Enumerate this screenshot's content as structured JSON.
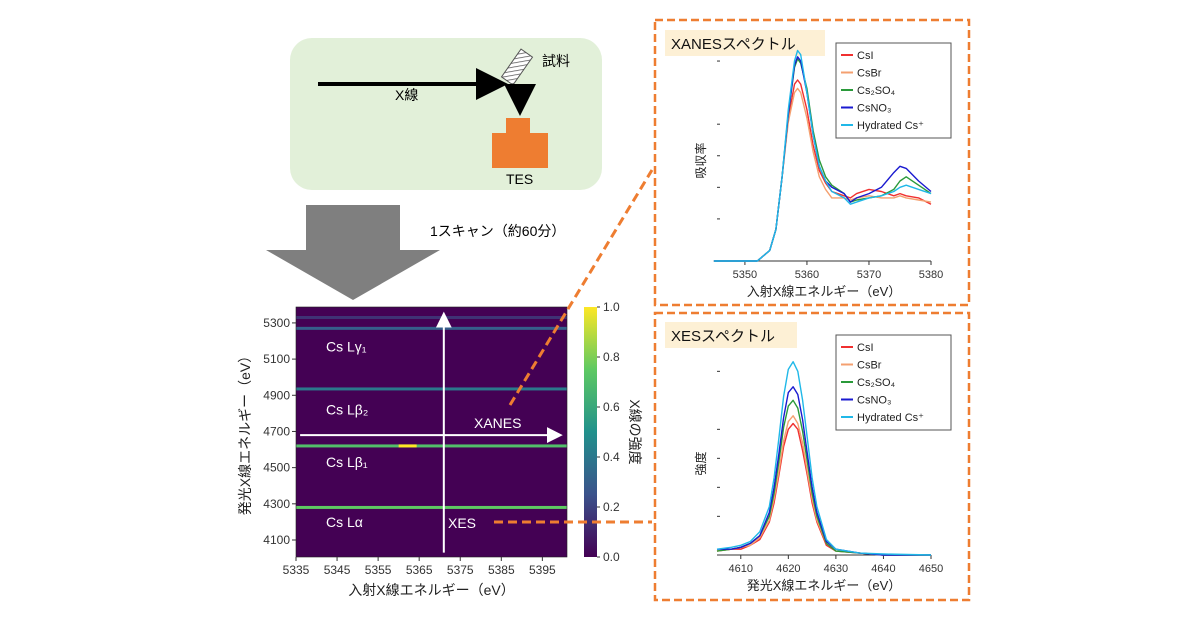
{
  "setup": {
    "xray_label": "X線",
    "sample_label": "試料",
    "detector_label": "TES",
    "scan_label": "1スキャン（約60分）"
  },
  "colors": {
    "accent": "#ee7d31",
    "setup_bg": "#e2f0d9",
    "tes": "#ee7d31",
    "arrow_gray": "#7f7f7f",
    "heat_bg": "#440154",
    "title_bg": "#fdf0d5"
  },
  "chart_data": [
    {
      "type": "heatmap",
      "xlabel": "入射X線エネルギー（eV）",
      "ylabel": "発光X線エネルギー（eV）",
      "colorbar_label": "X線の強度",
      "xlim": [
        5335,
        5401
      ],
      "ylim": [
        4006,
        5388
      ],
      "xticks": [
        "5335",
        "5345",
        "5355",
        "5365",
        "5375",
        "5385",
        "5395"
      ],
      "yticks": [
        "4100",
        "4300",
        "4500",
        "4700",
        "4900",
        "5100",
        "5300"
      ],
      "cticks": [
        "0.0",
        "0.2",
        "0.4",
        "0.6",
        "0.8",
        "1.0"
      ],
      "emission_lines": [
        {
          "label": "Cs Lα",
          "energy": 4280,
          "intensity": 0.75,
          "label_energy": 4200
        },
        {
          "label": "Cs Lβ₁",
          "energy": 4620,
          "intensity": 0.7,
          "label_energy": 4530
        },
        {
          "label": "Cs Lβ₂",
          "energy": 4935,
          "intensity": 0.4,
          "label_energy": 4820
        },
        {
          "label": "Cs Lγ₁",
          "energy": 5270,
          "intensity": 0.3,
          "label_energy": 5170
        },
        {
          "label": "",
          "energy": 5330,
          "intensity": 0.15,
          "label_energy": 5330
        }
      ],
      "annotations": {
        "xanes": "XANES",
        "xes": "XES"
      }
    },
    {
      "type": "line",
      "title": "XANESスペクトル",
      "xlabel": "入射X線エネルギー（eV）",
      "ylabel": "吸収率",
      "xlim": [
        5345.5,
        5380
      ],
      "ylim": [
        0,
        1.05
      ],
      "xticks": [
        "5350",
        "5360",
        "5370",
        "5380"
      ],
      "legend": "top-right",
      "x": [
        5345,
        5350,
        5352,
        5354,
        5355,
        5356,
        5357,
        5358,
        5358.5,
        5359,
        5360,
        5361,
        5362,
        5363,
        5364,
        5366,
        5367,
        5368,
        5370,
        5372,
        5374,
        5375,
        5376,
        5378,
        5380
      ],
      "series": [
        {
          "name": "CsI",
          "color": "#f03030",
          "values": [
            0,
            0,
            0,
            0.05,
            0.15,
            0.4,
            0.68,
            0.84,
            0.86,
            0.84,
            0.72,
            0.55,
            0.43,
            0.37,
            0.33,
            0.31,
            0.3,
            0.32,
            0.34,
            0.33,
            0.31,
            0.32,
            0.31,
            0.3,
            0.27
          ]
        },
        {
          "name": "CsBr",
          "color": "#f4a070",
          "values": [
            0,
            0,
            0,
            0.05,
            0.15,
            0.4,
            0.66,
            0.8,
            0.82,
            0.8,
            0.68,
            0.52,
            0.4,
            0.34,
            0.3,
            0.3,
            0.29,
            0.3,
            0.31,
            0.3,
            0.3,
            0.31,
            0.3,
            0.29,
            0.28
          ]
        },
        {
          "name": "Cs₂SO₄",
          "color": "#2a9a3a",
          "values": [
            0,
            0,
            0,
            0.05,
            0.15,
            0.4,
            0.7,
            0.92,
            0.96,
            0.94,
            0.82,
            0.62,
            0.48,
            0.4,
            0.36,
            0.32,
            0.28,
            0.29,
            0.3,
            0.31,
            0.34,
            0.38,
            0.4,
            0.36,
            0.32
          ]
        },
        {
          "name": "CsNO₃",
          "color": "#1a1ad0",
          "values": [
            0,
            0,
            0,
            0.05,
            0.15,
            0.4,
            0.7,
            0.93,
            0.97,
            0.95,
            0.8,
            0.6,
            0.45,
            0.38,
            0.35,
            0.32,
            0.28,
            0.3,
            0.32,
            0.35,
            0.42,
            0.45,
            0.44,
            0.38,
            0.33
          ]
        },
        {
          "name": "Hydrated Cs⁺",
          "color": "#20b8e8",
          "values": [
            0,
            0,
            0,
            0.05,
            0.15,
            0.4,
            0.72,
            0.95,
            1.0,
            0.98,
            0.8,
            0.6,
            0.45,
            0.38,
            0.33,
            0.3,
            0.27,
            0.28,
            0.3,
            0.31,
            0.33,
            0.35,
            0.36,
            0.34,
            0.32
          ]
        }
      ]
    },
    {
      "type": "line",
      "title": "XESスペクトル",
      "xlabel": "発光X線エネルギー（eV）",
      "ylabel": "強度",
      "xlim": [
        4605,
        4650
      ],
      "ylim": [
        0,
        1.05
      ],
      "xticks": [
        "4610",
        "4620",
        "4630",
        "4640",
        "4650"
      ],
      "legend": "top-right",
      "x": [
        4605,
        4608,
        4610,
        4612,
        4614,
        4616,
        4617,
        4618,
        4619,
        4620,
        4621,
        4622,
        4623,
        4624,
        4625,
        4626,
        4628,
        4630,
        4635,
        4640,
        4650
      ],
      "series": [
        {
          "name": "CsI",
          "color": "#f03030",
          "values": [
            0.02,
            0.03,
            0.03,
            0.05,
            0.08,
            0.17,
            0.27,
            0.41,
            0.56,
            0.65,
            0.68,
            0.65,
            0.54,
            0.41,
            0.27,
            0.17,
            0.05,
            0.02,
            0.01,
            0,
            0
          ]
        },
        {
          "name": "CsBr",
          "color": "#f4a070",
          "values": [
            0.02,
            0.03,
            0.04,
            0.05,
            0.09,
            0.18,
            0.29,
            0.43,
            0.59,
            0.69,
            0.72,
            0.68,
            0.58,
            0.43,
            0.29,
            0.18,
            0.06,
            0.02,
            0.01,
            0,
            0
          ]
        },
        {
          "name": "Cs₂SO₄",
          "color": "#2a9a3a",
          "values": [
            0.02,
            0.03,
            0.04,
            0.06,
            0.1,
            0.2,
            0.32,
            0.48,
            0.66,
            0.77,
            0.8,
            0.76,
            0.64,
            0.48,
            0.32,
            0.2,
            0.06,
            0.02,
            0.01,
            0,
            0
          ]
        },
        {
          "name": "CsNO₃",
          "color": "#1a1ad0",
          "values": [
            0.03,
            0.03,
            0.04,
            0.06,
            0.1,
            0.22,
            0.35,
            0.52,
            0.71,
            0.84,
            0.87,
            0.83,
            0.7,
            0.52,
            0.35,
            0.22,
            0.07,
            0.03,
            0.01,
            0,
            0
          ]
        },
        {
          "name": "Hydrated Cs⁺",
          "color": "#20b8e8",
          "values": [
            0.03,
            0.04,
            0.05,
            0.07,
            0.12,
            0.25,
            0.4,
            0.6,
            0.82,
            0.96,
            1.0,
            0.95,
            0.8,
            0.6,
            0.4,
            0.25,
            0.08,
            0.03,
            0.01,
            0.005,
            0
          ]
        }
      ]
    }
  ]
}
